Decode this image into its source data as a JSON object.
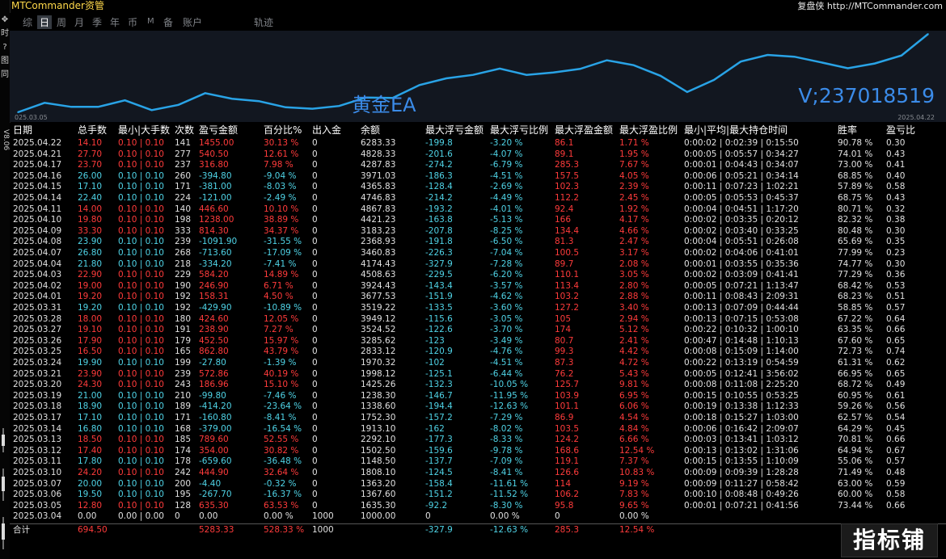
{
  "app": {
    "title": "MTCommander资管",
    "brand": "复盘侠 http://MTCommander.com",
    "left_tools": [
      "✥",
      "时",
      "?",
      "图",
      "同"
    ],
    "vertical_label": "V8.06"
  },
  "tabs": [
    {
      "label": "综",
      "active": false
    },
    {
      "label": "日",
      "active": true
    },
    {
      "label": "周",
      "active": false
    },
    {
      "label": "月",
      "active": false
    },
    {
      "label": "季",
      "active": false
    },
    {
      "label": "年",
      "active": false
    },
    {
      "label": "币",
      "active": false
    },
    {
      "label": "M",
      "active": false
    },
    {
      "label": "备",
      "active": false
    },
    {
      "label": "账户",
      "active": false
    },
    {
      "label": "轨迹",
      "active": false
    }
  ],
  "chart": {
    "ea_label": "黄金EA",
    "account_label": "V;237018519",
    "date_start": "025.03.05",
    "date_end": "2025.04.22",
    "line_color": "#29a3e6",
    "bg_color": "#121720"
  },
  "chart_data": {
    "type": "line",
    "x": [
      "2025.03.04",
      "2025.03.05",
      "2025.03.06",
      "2025.03.07",
      "2025.03.10",
      "2025.03.11",
      "2025.03.12",
      "2025.03.13",
      "2025.03.14",
      "2025.03.17",
      "2025.03.18",
      "2025.03.19",
      "2025.03.20",
      "2025.03.21",
      "2025.03.24",
      "2025.03.25",
      "2025.03.26",
      "2025.03.27",
      "2025.03.28",
      "2025.03.31",
      "2025.04.01",
      "2025.04.02",
      "2025.04.03",
      "2025.04.04",
      "2025.04.07",
      "2025.04.08",
      "2025.04.09",
      "2025.04.10",
      "2025.04.11",
      "2025.04.14",
      "2025.04.15",
      "2025.04.16",
      "2025.04.17",
      "2025.04.21",
      "2025.04.22"
    ],
    "values": [
      1000.0,
      1635.3,
      1367.6,
      1363.2,
      1808.1,
      1148.5,
      1502.5,
      2292.1,
      1913.1,
      1752.3,
      1338.6,
      1238.3,
      1425.26,
      1998.12,
      1970.32,
      2833.12,
      3285.62,
      3524.52,
      3949.12,
      3519.22,
      3677.53,
      3924.43,
      4508.63,
      4174.43,
      3460.83,
      2368.93,
      3183.23,
      4421.23,
      4867.83,
      4746.83,
      4365.83,
      3971.03,
      4287.83,
      4828.33,
      6283.33
    ],
    "ylabel": "",
    "xlabel": ""
  },
  "table": {
    "headers": [
      "日期",
      "总手数",
      "最小|大手数",
      "次数",
      "盈亏金额",
      "百分比%",
      "出入金",
      "余额",
      "最大浮亏金额",
      "最大浮亏比例",
      "最大浮盈金额",
      "最大浮盈比例",
      "最小|平均|最大持仓时间",
      "胜率",
      "盈亏比"
    ],
    "rows": [
      {
        "tone": "red",
        "cells": [
          "2025.04.22",
          "14.10",
          "0.10 | 0.10",
          "141",
          "1455.00",
          "30.13 %",
          "0",
          "6283.33",
          "-199.8",
          "-3.20 %",
          "86.1",
          "1.71 %",
          "0:00:02 | 0:02:39 | 0:15:50",
          "90.78 %",
          "0.30"
        ]
      },
      {
        "tone": "red",
        "cells": [
          "2025.04.21",
          "27.70",
          "0.10 | 0.10",
          "277",
          "540.50",
          "12.61 %",
          "0",
          "4828.33",
          "-201.6",
          "-4.07 %",
          "89.1",
          "1.95 %",
          "0:00:05 | 0:05:57 | 0:34:27",
          "74.01 %",
          "0.43"
        ]
      },
      {
        "tone": "red",
        "cells": [
          "2025.04.17",
          "23.70",
          "0.10 | 0.10",
          "237",
          "316.80",
          "7.98 %",
          "0",
          "4287.83",
          "-274.2",
          "-6.79 %",
          "285.3",
          "7.67 %",
          "0:00:01 | 0:04:43 | 0:34:07",
          "73.00 %",
          "0.41"
        ]
      },
      {
        "tone": "pos",
        "cells": [
          "2025.04.16",
          "26.00",
          "0.10 | 0.10",
          "260",
          "-394.80",
          "-9.04 %",
          "0",
          "3971.03",
          "-186.3",
          "-4.51 %",
          "157.5",
          "4.05 %",
          "0:00:06 | 0:05:21 | 0:34:14",
          "68.85 %",
          "0.40"
        ]
      },
      {
        "tone": "pos",
        "cells": [
          "2025.04.15",
          "17.10",
          "0.10 | 0.10",
          "171",
          "-381.00",
          "-8.03 %",
          "0",
          "4365.83",
          "-128.4",
          "-2.69 %",
          "102.3",
          "2.39 %",
          "0:00:11 | 0:07:23 | 1:02:21",
          "57.89 %",
          "0.58"
        ]
      },
      {
        "tone": "pos",
        "cells": [
          "2025.04.14",
          "22.40",
          "0.10 | 0.10",
          "224",
          "-121.00",
          "-2.49 %",
          "0",
          "4746.83",
          "-214.2",
          "-4.49 %",
          "112.2",
          "2.45 %",
          "0:00:05 | 0:05:53 | 0:45:37",
          "68.75 %",
          "0.43"
        ]
      },
      {
        "tone": "red",
        "cells": [
          "2025.04.11",
          "14.00",
          "0.10 | 0.10",
          "140",
          "446.60",
          "10.10 %",
          "0",
          "4867.83",
          "-193.2",
          "-4.01 %",
          "92.4",
          "1.92 %",
          "0:00:04 | 0:04:51 | 1:17:20",
          "80.71 %",
          "0.32"
        ]
      },
      {
        "tone": "red",
        "cells": [
          "2025.04.10",
          "19.80",
          "0.10 | 0.10",
          "198",
          "1238.00",
          "38.89 %",
          "0",
          "4421.23",
          "-163.8",
          "-5.13 %",
          "166",
          "4.17 %",
          "0:00:02 | 0:03:35 | 0:20:12",
          "82.32 %",
          "0.38"
        ]
      },
      {
        "tone": "red",
        "cells": [
          "2025.04.09",
          "33.30",
          "0.10 | 0.10",
          "333",
          "814.30",
          "34.37 %",
          "0",
          "3183.23",
          "-207.8",
          "-8.25 %",
          "134.4",
          "4.66 %",
          "0:00:02 | 0:03:40 | 0:33:25",
          "80.48 %",
          "0.30"
        ]
      },
      {
        "tone": "pos",
        "cells": [
          "2025.04.08",
          "23.90",
          "0.10 | 0.10",
          "239",
          "-1091.90",
          "-31.55 %",
          "0",
          "2368.93",
          "-191.8",
          "-6.50 %",
          "81.3",
          "2.47 %",
          "0:00:04 | 0:05:51 | 0:26:08",
          "65.69 %",
          "0.35"
        ]
      },
      {
        "tone": "pos",
        "cells": [
          "2025.04.07",
          "26.80",
          "0.10 | 0.10",
          "268",
          "-713.60",
          "-17.09 %",
          "0",
          "3460.83",
          "-226.3",
          "-7.04 %",
          "100.5",
          "3.17 %",
          "0:00:02 | 0:04:06 | 0:41:01",
          "77.99 %",
          "0.23"
        ]
      },
      {
        "tone": "pos",
        "cells": [
          "2025.04.04",
          "21.80",
          "0.10 | 0.10",
          "218",
          "-334.20",
          "-7.41 %",
          "0",
          "4174.43",
          "-327.9",
          "-7.28 %",
          "89.7",
          "2.08 %",
          "0:00:01 | 0:03:55 | 0:35:36",
          "74.77 %",
          "0.30"
        ]
      },
      {
        "tone": "red",
        "cells": [
          "2025.04.03",
          "22.90",
          "0.10 | 0.10",
          "229",
          "584.20",
          "14.89 %",
          "0",
          "4508.63",
          "-229.5",
          "-6.20 %",
          "110.1",
          "3.05 %",
          "0:00:02 | 0:03:09 | 0:41:41",
          "77.29 %",
          "0.36"
        ]
      },
      {
        "tone": "red",
        "cells": [
          "2025.04.02",
          "19.00",
          "0.10 | 0.10",
          "190",
          "246.90",
          "6.71 %",
          "0",
          "3924.43",
          "-143.4",
          "-3.57 %",
          "113.4",
          "2.80 %",
          "0:00:05 | 0:07:21 | 1:13:47",
          "68.42 %",
          "0.53"
        ]
      },
      {
        "tone": "red",
        "cells": [
          "2025.04.01",
          "19.20",
          "0.10 | 0.10",
          "192",
          "158.31",
          "4.50 %",
          "0",
          "3677.53",
          "-151.9",
          "-4.62 %",
          "103.2",
          "2.88 %",
          "0:00:11 | 0:08:43 | 2:09:31",
          "68.23 %",
          "0.51"
        ]
      },
      {
        "tone": "pos",
        "cells": [
          "2025.03.31",
          "19.20",
          "0.10 | 0.10",
          "192",
          "-429.90",
          "-10.89 %",
          "0",
          "3519.22",
          "-133.5",
          "-3.60 %",
          "127.2",
          "3.40 %",
          "0:00:13 | 0:07:09 | 0:44:44",
          "58.85 %",
          "0.57"
        ]
      },
      {
        "tone": "red",
        "cells": [
          "2025.03.28",
          "18.00",
          "0.10 | 0.10",
          "180",
          "424.60",
          "12.05 %",
          "0",
          "3949.12",
          "-115.6",
          "-3.05 %",
          "105",
          "2.94 %",
          "0:00:13 | 0:07:15 | 0:53:08",
          "67.22 %",
          "0.64"
        ]
      },
      {
        "tone": "red",
        "cells": [
          "2025.03.27",
          "19.10",
          "0.10 | 0.10",
          "191",
          "238.90",
          "7.27 %",
          "0",
          "3524.52",
          "-122.6",
          "-3.70 %",
          "174",
          "5.12 %",
          "0:00:22 | 0:10:32 | 1:00:10",
          "63.35 %",
          "0.66"
        ]
      },
      {
        "tone": "red",
        "cells": [
          "2025.03.26",
          "17.90",
          "0.10 | 0.10",
          "179",
          "452.50",
          "15.97 %",
          "0",
          "3285.62",
          "-123",
          "-3.49 %",
          "80.7",
          "2.41 %",
          "0:00:47 | 0:14:48 | 1:10:13",
          "67.60 %",
          "0.65"
        ]
      },
      {
        "tone": "red",
        "cells": [
          "2025.03.25",
          "16.50",
          "0.10 | 0.10",
          "165",
          "862.80",
          "43.79 %",
          "0",
          "2833.12",
          "-120.9",
          "-4.76 %",
          "99.3",
          "4.42 %",
          "0:00:08 | 0:15:09 | 1:14:00",
          "72.73 %",
          "0.74"
        ]
      },
      {
        "tone": "pos",
        "cells": [
          "2025.03.24",
          "19.90",
          "0.10 | 0.10",
          "199",
          "-27.80",
          "-1.39 %",
          "0",
          "1970.32",
          "-102",
          "-4.51 %",
          "87.3",
          "4.72 %",
          "0:00:22 | 0:13:19 | 0:54:59",
          "61.31 %",
          "0.62"
        ]
      },
      {
        "tone": "red",
        "cells": [
          "2025.03.21",
          "23.90",
          "0.10 | 0.10",
          "239",
          "572.86",
          "40.19 %",
          "0",
          "1998.12",
          "-125.1",
          "-6.44 %",
          "76.2",
          "5.43 %",
          "0:00:05 | 0:12:41 | 3:56:02",
          "66.95 %",
          "0.65"
        ]
      },
      {
        "tone": "red",
        "cells": [
          "2025.03.20",
          "24.30",
          "0.10 | 0.10",
          "243",
          "186.96",
          "15.10 %",
          "0",
          "1425.26",
          "-132.3",
          "-10.05 %",
          "125.7",
          "9.81 %",
          "0:00:08 | 0:11:08 | 2:25:20",
          "68.72 %",
          "0.49"
        ]
      },
      {
        "tone": "pos",
        "cells": [
          "2025.03.19",
          "21.00",
          "0.10 | 0.10",
          "210",
          "-99.80",
          "-7.46 %",
          "0",
          "1238.30",
          "-146.7",
          "-11.95 %",
          "103.9",
          "6.95 %",
          "0:00:15 | 0:10:55 | 0:53:25",
          "60.95 %",
          "0.61"
        ]
      },
      {
        "tone": "pos",
        "cells": [
          "2025.03.18",
          "18.90",
          "0.10 | 0.10",
          "189",
          "-414.20",
          "-23.64 %",
          "0",
          "1338.60",
          "-194.4",
          "-12.63 %",
          "101.1",
          "6.06 %",
          "0:00:19 | 0:13:38 | 1:12:33",
          "59.26 %",
          "0.56"
        ]
      },
      {
        "tone": "pos",
        "cells": [
          "2025.03.17",
          "17.10",
          "0.10 | 0.10",
          "171",
          "-160.80",
          "-8.41 %",
          "0",
          "1752.30",
          "-157.2",
          "-7.29 %",
          "86.9",
          "4.54 %",
          "0:00:18 | 0:15:27 | 1:03:00",
          "62.57 %",
          "0.54"
        ]
      },
      {
        "tone": "pos",
        "cells": [
          "2025.03.14",
          "16.80",
          "0.10 | 0.10",
          "168",
          "-379.00",
          "-16.54 %",
          "0",
          "1913.10",
          "-162",
          "-8.02 %",
          "103.5",
          "4.84 %",
          "0:00:06 | 0:16:42 | 2:09:07",
          "64.29 %",
          "0.45"
        ]
      },
      {
        "tone": "red",
        "cells": [
          "2025.03.13",
          "18.50",
          "0.10 | 0.10",
          "185",
          "789.60",
          "52.55 %",
          "0",
          "2292.10",
          "-177.3",
          "-8.33 %",
          "124.2",
          "6.66 %",
          "0:00:03 | 0:13:41 | 1:03:12",
          "70.81 %",
          "0.66"
        ]
      },
      {
        "tone": "red",
        "cells": [
          "2025.03.12",
          "17.40",
          "0.10 | 0.10",
          "174",
          "354.00",
          "30.82 %",
          "0",
          "1502.50",
          "-159.6",
          "-9.78 %",
          "168.6",
          "12.54 %",
          "0:00:13 | 0:13:02 | 1:31:06",
          "64.94 %",
          "0.67"
        ]
      },
      {
        "tone": "pos",
        "cells": [
          "2025.03.11",
          "17.80",
          "0.10 | 0.10",
          "178",
          "-659.60",
          "-36.48 %",
          "0",
          "1148.50",
          "-137.7",
          "-7.09 %",
          "119.1",
          "7.37 %",
          "0:00:15 | 0:13:55 | 1:10:09",
          "55.06 %",
          "0.57"
        ]
      },
      {
        "tone": "red",
        "cells": [
          "2025.03.10",
          "24.20",
          "0.10 | 0.10",
          "242",
          "444.90",
          "32.64 %",
          "0",
          "1808.10",
          "-124.5",
          "-8.41 %",
          "126.6",
          "10.83 %",
          "0:00:09 | 0:09:39 | 1:28:28",
          "71.49 %",
          "0.48"
        ]
      },
      {
        "tone": "pos",
        "cells": [
          "2025.03.07",
          "20.00",
          "0.10 | 0.10",
          "200",
          "-4.40",
          "-0.32 %",
          "0",
          "1363.20",
          "-158.4",
          "-11.61 %",
          "114",
          "9.19 %",
          "0:00:09 | 0:11:27 | 0:58:42",
          "63.00 %",
          "0.59"
        ]
      },
      {
        "tone": "pos",
        "cells": [
          "2025.03.06",
          "19.50",
          "0.10 | 0.10",
          "195",
          "-267.70",
          "-16.37 %",
          "0",
          "1367.60",
          "-151.2",
          "-11.52 %",
          "106.2",
          "7.83 %",
          "0:00:10 | 0:08:48 | 0:49:26",
          "60.00 %",
          "0.58"
        ]
      },
      {
        "tone": "red",
        "cells": [
          "2025.03.05",
          "12.80",
          "0.10 | 0.10",
          "128",
          "635.30",
          "63.53 %",
          "0",
          "1635.30",
          "-92.2",
          "-8.30 %",
          "95.8",
          "9.65 %",
          "0:00:01 | 0:07:21 | 0:41:56",
          "73.44 %",
          "0.66"
        ]
      },
      {
        "tone": "neutral",
        "cells": [
          "2025.03.04",
          "0.00",
          "0.00 | 0.00",
          "0",
          "0.00",
          "0.00 %",
          "1000",
          "1000.00",
          "0",
          "0.00 %",
          "0",
          "0.00 %",
          "",
          "",
          ""
        ]
      }
    ],
    "total": [
      "合计",
      "694.50",
      "",
      "",
      "5283.33",
      "528.33 %",
      "1000",
      "",
      "-327.9",
      "-12.63 %",
      "285.3",
      "12.54 %",
      "",
      "",
      ""
    ]
  },
  "watermark": "指标铺"
}
